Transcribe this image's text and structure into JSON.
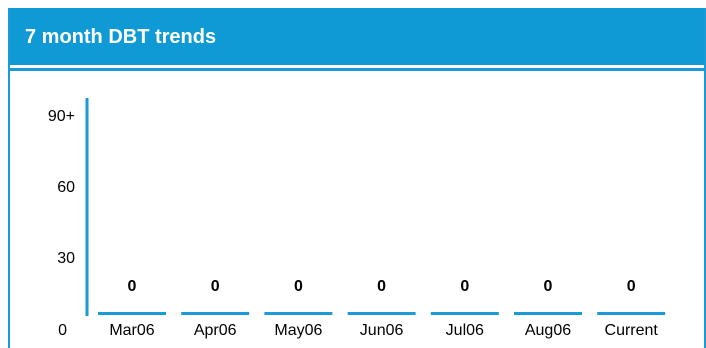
{
  "panel": {
    "title": "7 month DBT trends"
  },
  "colors": {
    "header": "#0f9ad6",
    "axis": "#1a9ad6",
    "bar": "#1a9ad6"
  },
  "chart_data": {
    "type": "bar",
    "title": "7 month DBT trends",
    "categories": [
      "Mar06",
      "Apr06",
      "May06",
      "Jun06",
      "Jul06",
      "Aug06",
      "Current"
    ],
    "values": [
      0,
      0,
      0,
      0,
      0,
      0,
      0
    ],
    "value_labels": [
      "0",
      "0",
      "0",
      "0",
      "0",
      "0",
      "0"
    ],
    "y_ticks": [
      0,
      30,
      60,
      90
    ],
    "y_tick_labels": [
      "0",
      "30",
      "60",
      "90+"
    ],
    "ylim": [
      0,
      90
    ],
    "grid": false,
    "legend": "none"
  }
}
